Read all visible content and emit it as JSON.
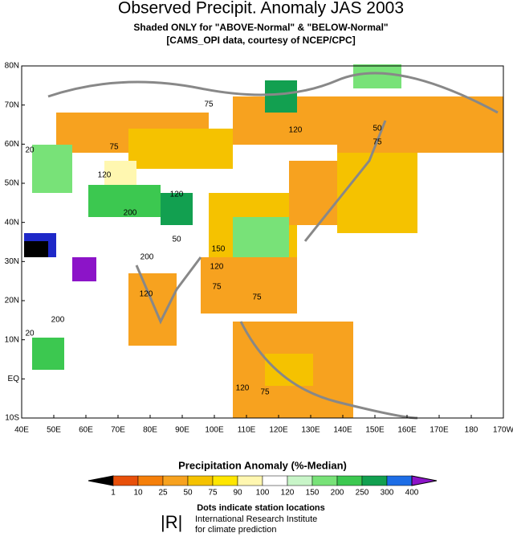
{
  "header": {
    "title": "Observed Precipit. Anomaly JAS 2003",
    "subtitle": "Shaded ONLY for \"ABOVE-Normal\" & \"BELOW-Normal\"",
    "source": "[CAMS_OPI data, courtesy of NCEP/CPC]"
  },
  "map": {
    "lat_labels": [
      "80N",
      "70N",
      "60N",
      "50N",
      "40N",
      "30N",
      "20N",
      "10N",
      "EQ",
      "10S"
    ],
    "lon_labels": [
      "40E",
      "50E",
      "60E",
      "70E",
      "80E",
      "90E",
      "100E",
      "110E",
      "120E",
      "130E",
      "140E",
      "150E",
      "160E",
      "170E",
      "180",
      "170W"
    ],
    "contour_labels": [
      "75",
      "120",
      "50",
      "75",
      "20",
      "120",
      "75",
      "200",
      "120",
      "50",
      "150",
      "200",
      "120",
      "75",
      "200",
      "120",
      "75",
      "20",
      "120",
      "75"
    ]
  },
  "legend": {
    "title": "Precipitation Anomaly (%-Median)",
    "labels": [
      "1",
      "10",
      "25",
      "50",
      "75",
      "90",
      "100",
      "120",
      "150",
      "200",
      "250",
      "300",
      "400"
    ],
    "colors": [
      "#000000",
      "#e8500a",
      "#f57f0a",
      "#f7a21f",
      "#f5c200",
      "#ffe600",
      "#fff7b0",
      "#ffffff",
      "#c8f5c8",
      "#78e278",
      "#3cc850",
      "#12a050",
      "#1e6ee6",
      "#1e28c8",
      "#8c14c8"
    ],
    "note": "Dots indicate station locations"
  },
  "footer": {
    "logo": "|R|",
    "org1": "International Research Institute",
    "org2": "for climate prediction"
  }
}
